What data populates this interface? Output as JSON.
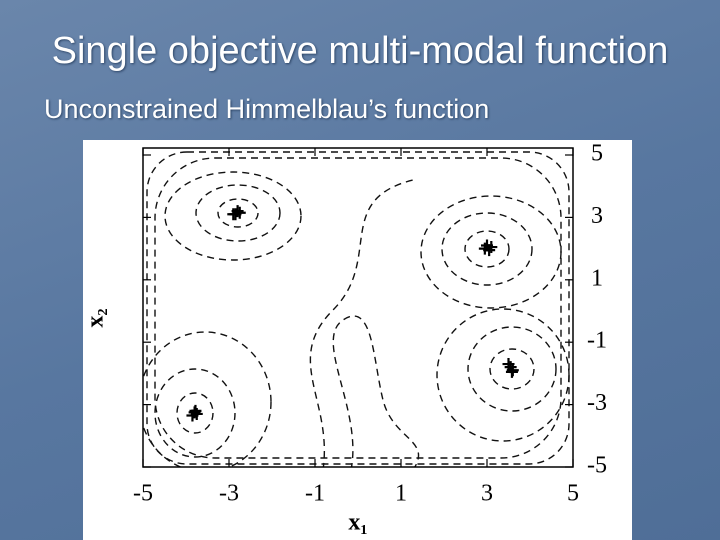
{
  "title": "Single objective multi-modal function",
  "subtitle": "Unconstrained Himmelblau’s function",
  "chart_data": {
    "type": "scatter",
    "x_label": "x₁",
    "y_label": "x₂",
    "x": [
      -2.85,
      -2.75,
      -2.8,
      -2.9,
      2.95,
      3.05,
      3.0,
      3.1,
      3.55,
      3.6,
      3.58,
      3.5,
      -3.8,
      -3.75,
      -3.78,
      -3.85
    ],
    "y": [
      3.1,
      3.15,
      3.2,
      3.1,
      2.0,
      1.95,
      2.1,
      2.05,
      -1.8,
      -1.9,
      -1.95,
      -1.7,
      -3.25,
      -3.3,
      -3.2,
      -3.35
    ],
    "color": "#000000",
    "xlim": [
      -5,
      5
    ],
    "ylim": [
      -5,
      5
    ],
    "xticks": [
      -5,
      -3,
      -1,
      1,
      3,
      5
    ],
    "yticks": [
      -5,
      -3,
      -1,
      1,
      3,
      5
    ]
  }
}
